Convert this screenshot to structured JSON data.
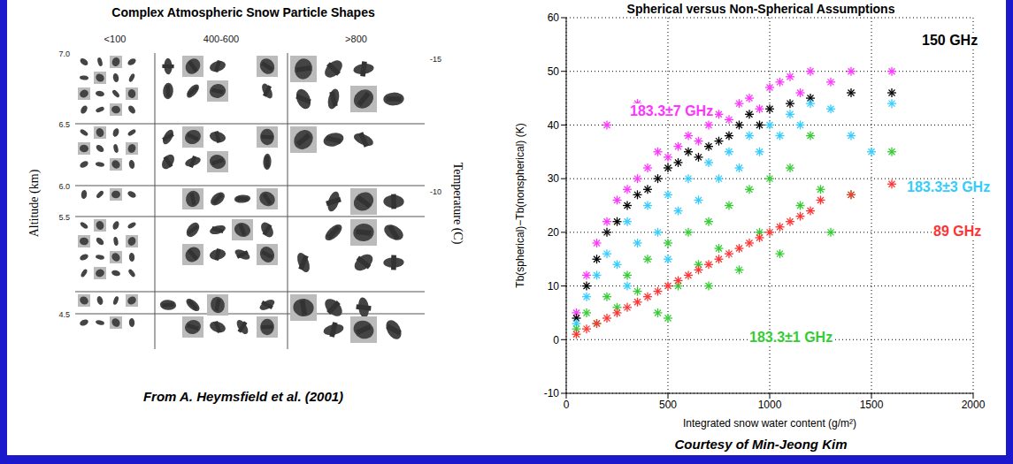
{
  "left_panel": {
    "title": "Complex Atmospheric Snow Particle Shapes",
    "columns": [
      "<100",
      "400-600",
      ">800"
    ],
    "y_label": "Altitude (km)",
    "y2_label": "Temperature (C)",
    "altitude_ticks": [
      "7.0",
      "6.5",
      "6.0",
      "5.5",
      "4.5"
    ],
    "temperature_ticks": [
      "-15",
      "-10"
    ],
    "caption": "From A. Heymsfield et al. (2001)"
  },
  "chart_data": {
    "type": "scatter",
    "title": "Spherical versus Non-Spherical Assumptions",
    "x_label": "Integrated snow water content (g/m²)",
    "y_label": "Tb(spherical)−Tb(nonspherical) (K)",
    "xlim": [
      0,
      2000
    ],
    "xticks": [
      0,
      500,
      1000,
      1500,
      2000
    ],
    "ylim": [
      -10,
      60
    ],
    "yticks": [
      -10,
      0,
      10,
      20,
      30,
      40,
      50,
      60
    ],
    "grid": true,
    "marker": "asterisk",
    "series": [
      {
        "name": "183.3±7 GHz",
        "color": "#ff33ff",
        "x": [
          50,
          100,
          150,
          200,
          250,
          300,
          350,
          400,
          450,
          500,
          550,
          600,
          650,
          700,
          750,
          800,
          850,
          900,
          950,
          1000,
          1050,
          1100,
          1150,
          1200,
          1300,
          1400,
          1600,
          200,
          350
        ],
        "values": [
          5,
          12,
          18,
          22,
          26,
          28,
          30,
          32,
          35,
          34,
          36,
          38,
          37,
          40,
          42,
          41,
          44,
          45,
          43,
          47,
          48,
          49,
          46,
          50,
          48,
          50,
          50,
          40,
          44
        ]
      },
      {
        "name": "150 GHz",
        "color": "#000000",
        "x": [
          50,
          100,
          150,
          200,
          250,
          300,
          350,
          400,
          450,
          500,
          550,
          600,
          650,
          700,
          750,
          800,
          850,
          900,
          950,
          1000,
          1100,
          1200,
          1400,
          1600
        ],
        "values": [
          4,
          10,
          15,
          20,
          22,
          25,
          27,
          28,
          30,
          32,
          33,
          35,
          34,
          36,
          37,
          38,
          40,
          42,
          40,
          43,
          44,
          45,
          46,
          46
        ]
      },
      {
        "name": "183.3±3 GHz",
        "color": "#33ccff",
        "x": [
          50,
          100,
          150,
          200,
          250,
          300,
          350,
          400,
          450,
          500,
          550,
          600,
          650,
          700,
          750,
          800,
          850,
          900,
          950,
          1000,
          1050,
          1100,
          1150,
          1200,
          1300,
          1400,
          1500,
          1600,
          300,
          500
        ],
        "values": [
          3,
          8,
          12,
          16,
          14,
          22,
          18,
          25,
          20,
          27,
          24,
          30,
          26,
          33,
          30,
          35,
          32,
          38,
          35,
          40,
          38,
          42,
          40,
          44,
          43,
          38,
          35,
          44,
          10,
          15
        ]
      },
      {
        "name": "183.3±1 GHz",
        "color": "#33cc33",
        "x": [
          50,
          100,
          150,
          200,
          250,
          300,
          350,
          400,
          450,
          500,
          550,
          600,
          650,
          700,
          750,
          800,
          850,
          900,
          950,
          1000,
          1050,
          1100,
          1150,
          1200,
          1250,
          1300,
          1400,
          1600,
          700,
          500
        ],
        "values": [
          2,
          5,
          3,
          8,
          6,
          12,
          9,
          15,
          5,
          18,
          10,
          20,
          14,
          22,
          17,
          25,
          13,
          28,
          20,
          30,
          16,
          32,
          25,
          38,
          28,
          20,
          27,
          35,
          10,
          4
        ]
      },
      {
        "name": "89 GHz",
        "color": "#ff3333",
        "x": [
          50,
          100,
          150,
          200,
          250,
          300,
          350,
          400,
          450,
          500,
          550,
          600,
          650,
          700,
          750,
          800,
          850,
          900,
          950,
          1000,
          1050,
          1100,
          1150,
          1200,
          1250,
          1400,
          1600
        ],
        "values": [
          1,
          2,
          3,
          4,
          5,
          6,
          7,
          8,
          9,
          10,
          11,
          12,
          13,
          14,
          15,
          16,
          17,
          18,
          19,
          20,
          21,
          22,
          23,
          24,
          26,
          27,
          29
        ]
      }
    ]
  },
  "caption": "Courtesy of Min-Jeong Kim"
}
